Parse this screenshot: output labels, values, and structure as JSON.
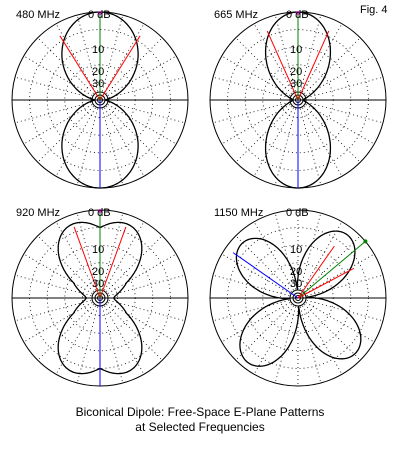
{
  "figure_label": "Fig. 4",
  "caption": {
    "line1": "Biconical Dipole:  Free-Space E-Plane Patterns",
    "line2": "at Selected Frequencies"
  },
  "colors": {
    "pattern": "#000000",
    "grid": "#000000",
    "red_line": "#ff0000",
    "green_line": "#008000",
    "blue_line": "#0000ff",
    "marker": "#cc33cc"
  },
  "ring_labels": [
    "0 dB",
    "10",
    "20",
    "30"
  ],
  "plots": [
    {
      "frequency": "480 MHz",
      "top_label": "0 dB",
      "ring_labels": [
        "10",
        "20",
        "30"
      ],
      "lobes": "two",
      "max_angle_deg": 0
    },
    {
      "frequency": "665 MHz",
      "top_label": "0 dB",
      "ring_labels": [
        "10",
        "20",
        "30"
      ],
      "lobes": "two",
      "max_angle_deg": 0
    },
    {
      "frequency": "920 MHz",
      "top_label": "0 dB",
      "ring_labels": [
        "10",
        "20",
        "30"
      ],
      "lobes": "multi",
      "max_angle_deg": 0
    },
    {
      "frequency": "1150 MHz",
      "top_label": "0 dB",
      "ring_labels": [
        "10",
        "20",
        "30"
      ],
      "lobes": "butterfly",
      "max_angle_deg": 50
    }
  ]
}
